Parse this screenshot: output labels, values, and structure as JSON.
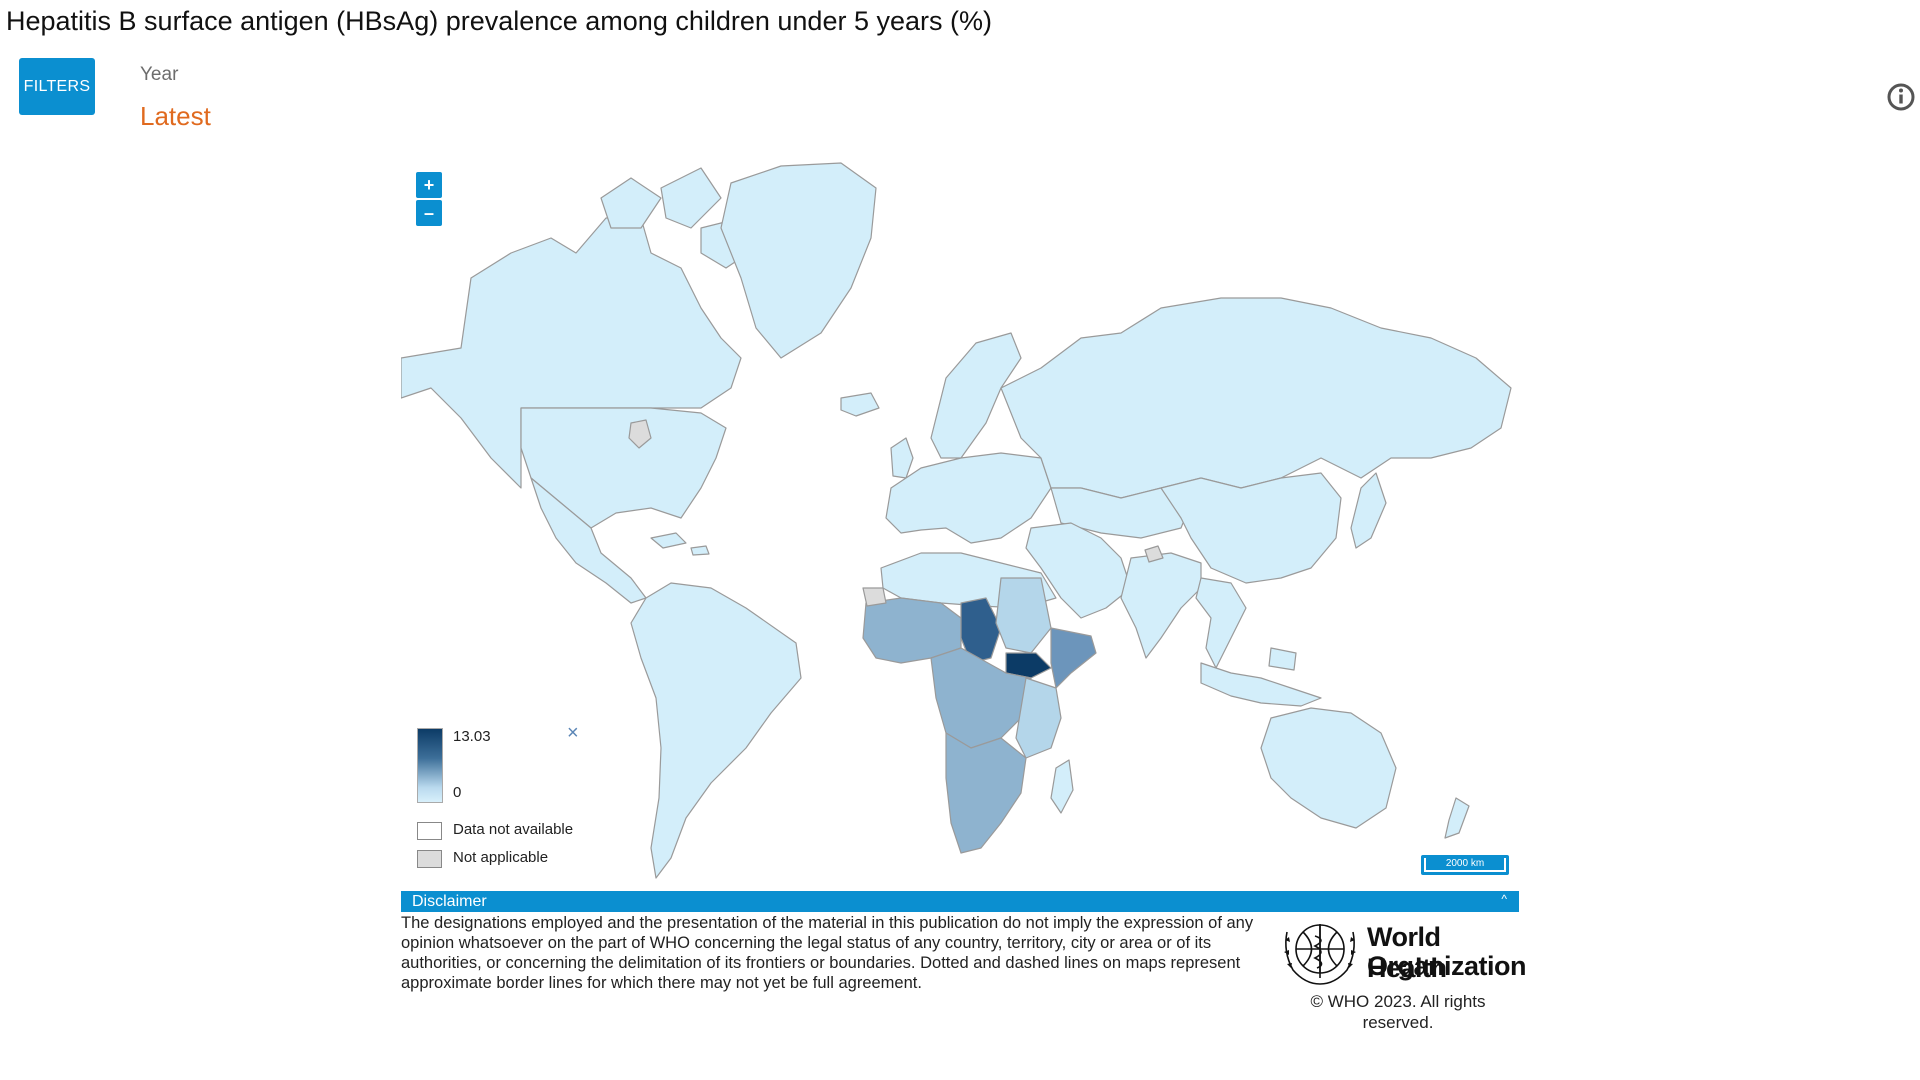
{
  "page": {
    "title": "Hepatitis B surface antigen (HBsAg) prevalence among children under 5 years (%)"
  },
  "filters": {
    "button_label": "FILTERS",
    "year_label": "Year",
    "year_value": "Latest"
  },
  "map": {
    "zoom_in_label": "+",
    "zoom_out_label": "–",
    "scale_label": "2000 km",
    "colors": {
      "lowest": "#d3eefa",
      "low": "#b4d6ea",
      "mid": "#8eb3cf",
      "high": "#5a86ad",
      "highest": "#0c3b66",
      "border": "#9a9a9a",
      "not_applicable": "#dcdcdc"
    },
    "legend": {
      "max_value": "13.03",
      "min_value": "0",
      "no_data_label": "Data not available",
      "not_applicable_label": "Not applicable",
      "close_label": "×"
    }
  },
  "disclaimer": {
    "header": "Disclaimer",
    "collapse_icon": "^",
    "text": "The designations employed and the presentation of the material in this publication do not imply the expression of any opinion whatsoever on the part of WHO concerning the legal status of any country, territory, city or area or of its authorities, or concerning the delimitation of its frontiers or boundaries. Dotted and dashed lines on maps represent approximate border lines for which there may not yet be full agreement."
  },
  "branding": {
    "org_line1": "World Health",
    "org_line2": "Organization",
    "copyright": "© WHO 2023. All rights reserved."
  }
}
